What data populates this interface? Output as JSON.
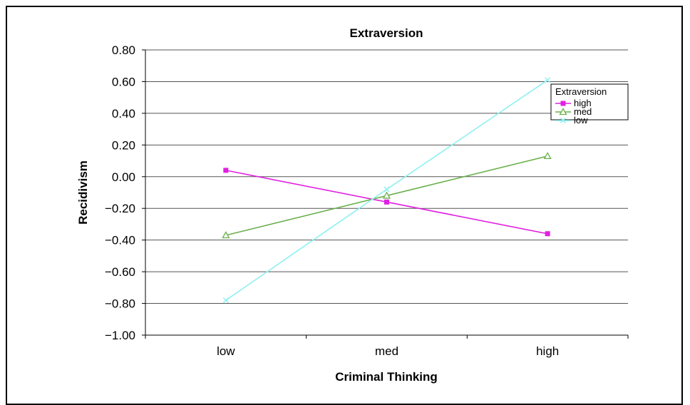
{
  "chart_data": {
    "type": "line",
    "title": "Extraversion",
    "xlabel": "Criminal Thinking",
    "ylabel": "Recidivism",
    "categories": [
      "low",
      "med",
      "high"
    ],
    "ylim": [
      -1.0,
      0.8
    ],
    "yticks": [
      "0.80",
      "0.60",
      "0.40",
      "0.20",
      "0.00",
      "−0.20",
      "−0.40",
      "−0.60",
      "−0.80",
      "−1.00"
    ],
    "ytick_values": [
      0.8,
      0.6,
      0.4,
      0.2,
      0.0,
      -0.2,
      -0.4,
      -0.6,
      -0.8,
      -1.0
    ],
    "grid": true,
    "legend": {
      "title": "Extraversion",
      "placement": "top-right"
    },
    "series": [
      {
        "name": "high",
        "values": [
          0.04,
          -0.16,
          -0.36
        ],
        "color": "#e020e0",
        "marker": "square"
      },
      {
        "name": "med",
        "values": [
          -0.37,
          -0.12,
          0.13
        ],
        "color": "#6ab04c",
        "marker": "triangle"
      },
      {
        "name": "low",
        "values": [
          -0.78,
          -0.08,
          0.61
        ],
        "color": "#8ff0f0",
        "marker": "x"
      }
    ]
  }
}
